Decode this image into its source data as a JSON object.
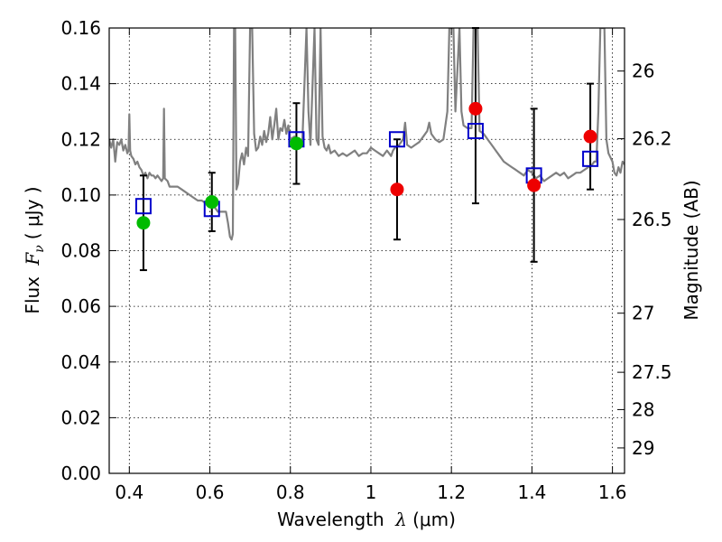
{
  "chart_data": {
    "type": "scatter",
    "xlabel_prefix": "Wavelength",
    "xlabel_symbol": "λ",
    "xlabel_unit": "(μm)",
    "ylabel_prefix": "Flux",
    "ylabel_symbol": "F",
    "ylabel_subscript": "ν",
    "ylabel_unit": "( μJy )",
    "y2label": "Magnitude (AB)",
    "xlim": [
      0.35,
      1.63
    ],
    "ylim": [
      0.0,
      0.16
    ],
    "grid": true,
    "x_ticks": [
      0.4,
      0.6,
      0.8,
      1.0,
      1.2,
      1.4,
      1.6
    ],
    "x_tick_labels": [
      "0.4",
      "0.6",
      "0.8",
      "1",
      "1.2",
      "1.4",
      "1.6"
    ],
    "y_ticks": [
      0.0,
      0.02,
      0.04,
      0.06,
      0.08,
      0.1,
      0.12,
      0.14,
      0.16
    ],
    "y_tick_labels": [
      "0.00",
      "0.02",
      "0.04",
      "0.06",
      "0.08",
      "0.10",
      "0.12",
      "0.14",
      "0.16"
    ],
    "magnitude_ticks": [
      {
        "mag": 26,
        "label": "26"
      },
      {
        "mag": 26.2,
        "label": "26.2"
      },
      {
        "mag": 26.5,
        "label": "26.5"
      },
      {
        "mag": 27,
        "label": "27"
      },
      {
        "mag": 27.5,
        "label": "27.5"
      },
      {
        "mag": 28,
        "label": "28"
      },
      {
        "mag": 29,
        "label": "29"
      }
    ],
    "series": [
      {
        "name": "model_spectrum",
        "kind": "line",
        "color": "#808080",
        "points": [
          [
            0.35,
            0.12
          ],
          [
            0.355,
            0.117
          ],
          [
            0.36,
            0.12
          ],
          [
            0.365,
            0.112
          ],
          [
            0.37,
            0.119
          ],
          [
            0.375,
            0.118
          ],
          [
            0.38,
            0.12
          ],
          [
            0.385,
            0.116
          ],
          [
            0.39,
            0.118
          ],
          [
            0.395,
            0.115
          ],
          [
            0.398,
            0.116
          ],
          [
            0.4,
            0.129
          ],
          [
            0.402,
            0.116
          ],
          [
            0.405,
            0.114
          ],
          [
            0.41,
            0.113
          ],
          [
            0.415,
            0.111
          ],
          [
            0.42,
            0.112
          ],
          [
            0.425,
            0.11
          ],
          [
            0.43,
            0.109
          ],
          [
            0.435,
            0.107
          ],
          [
            0.44,
            0.108
          ],
          [
            0.445,
            0.106
          ],
          [
            0.45,
            0.108
          ],
          [
            0.455,
            0.107
          ],
          [
            0.46,
            0.107
          ],
          [
            0.465,
            0.106
          ],
          [
            0.47,
            0.107
          ],
          [
            0.475,
            0.106
          ],
          [
            0.48,
            0.105
          ],
          [
            0.484,
            0.106
          ],
          [
            0.486,
            0.131
          ],
          [
            0.488,
            0.106
          ],
          [
            0.495,
            0.105
          ],
          [
            0.5,
            0.103
          ],
          [
            0.51,
            0.103
          ],
          [
            0.52,
            0.103
          ],
          [
            0.53,
            0.102
          ],
          [
            0.54,
            0.101
          ],
          [
            0.55,
            0.1
          ],
          [
            0.56,
            0.099
          ],
          [
            0.57,
            0.098
          ],
          [
            0.58,
            0.098
          ],
          [
            0.59,
            0.097
          ],
          [
            0.6,
            0.097
          ],
          [
            0.61,
            0.096
          ],
          [
            0.62,
            0.094
          ],
          [
            0.63,
            0.094
          ],
          [
            0.64,
            0.094
          ],
          [
            0.645,
            0.09
          ],
          [
            0.65,
            0.085
          ],
          [
            0.654,
            0.084
          ],
          [
            0.657,
            0.086
          ],
          [
            0.66,
            0.16
          ],
          [
            0.663,
            0.16
          ],
          [
            0.666,
            0.102
          ],
          [
            0.67,
            0.104
          ],
          [
            0.675,
            0.112
          ],
          [
            0.68,
            0.115
          ],
          [
            0.685,
            0.111
          ],
          [
            0.69,
            0.117
          ],
          [
            0.695,
            0.114
          ],
          [
            0.7,
            0.16
          ],
          [
            0.705,
            0.16
          ],
          [
            0.71,
            0.122
          ],
          [
            0.715,
            0.116
          ],
          [
            0.72,
            0.117
          ],
          [
            0.725,
            0.121
          ],
          [
            0.73,
            0.118
          ],
          [
            0.735,
            0.123
          ],
          [
            0.74,
            0.119
          ],
          [
            0.745,
            0.122
          ],
          [
            0.75,
            0.128
          ],
          [
            0.755,
            0.12
          ],
          [
            0.76,
            0.125
          ],
          [
            0.765,
            0.131
          ],
          [
            0.77,
            0.12
          ],
          [
            0.775,
            0.124
          ],
          [
            0.78,
            0.123
          ],
          [
            0.785,
            0.127
          ],
          [
            0.79,
            0.122
          ],
          [
            0.795,
            0.125
          ],
          [
            0.8,
            0.12
          ],
          [
            0.81,
            0.121
          ],
          [
            0.82,
            0.119
          ],
          [
            0.83,
            0.12
          ],
          [
            0.84,
            0.16
          ],
          [
            0.845,
            0.13
          ],
          [
            0.85,
            0.118
          ],
          [
            0.86,
            0.16
          ],
          [
            0.865,
            0.12
          ],
          [
            0.87,
            0.118
          ],
          [
            0.875,
            0.16
          ],
          [
            0.88,
            0.121
          ],
          [
            0.885,
            0.117
          ],
          [
            0.89,
            0.116
          ],
          [
            0.895,
            0.118
          ],
          [
            0.9,
            0.115
          ],
          [
            0.91,
            0.116
          ],
          [
            0.92,
            0.114
          ],
          [
            0.93,
            0.115
          ],
          [
            0.94,
            0.114
          ],
          [
            0.95,
            0.115
          ],
          [
            0.96,
            0.116
          ],
          [
            0.97,
            0.114
          ],
          [
            0.98,
            0.115
          ],
          [
            0.99,
            0.115
          ],
          [
            1.0,
            0.117
          ],
          [
            1.01,
            0.116
          ],
          [
            1.02,
            0.115
          ],
          [
            1.03,
            0.114
          ],
          [
            1.04,
            0.116
          ],
          [
            1.05,
            0.114
          ],
          [
            1.055,
            0.116
          ],
          [
            1.06,
            0.117
          ],
          [
            1.07,
            0.118
          ],
          [
            1.08,
            0.12
          ],
          [
            1.085,
            0.126
          ],
          [
            1.09,
            0.118
          ],
          [
            1.1,
            0.117
          ],
          [
            1.11,
            0.118
          ],
          [
            1.12,
            0.119
          ],
          [
            1.13,
            0.121
          ],
          [
            1.14,
            0.123
          ],
          [
            1.145,
            0.126
          ],
          [
            1.15,
            0.122
          ],
          [
            1.16,
            0.12
          ],
          [
            1.17,
            0.119
          ],
          [
            1.18,
            0.12
          ],
          [
            1.19,
            0.13
          ],
          [
            1.195,
            0.16
          ],
          [
            1.205,
            0.16
          ],
          [
            1.21,
            0.13
          ],
          [
            1.22,
            0.16
          ],
          [
            1.225,
            0.13
          ],
          [
            1.23,
            0.125
          ],
          [
            1.24,
            0.124
          ],
          [
            1.25,
            0.124
          ],
          [
            1.255,
            0.16
          ],
          [
            1.265,
            0.16
          ],
          [
            1.27,
            0.123
          ],
          [
            1.28,
            0.122
          ],
          [
            1.29,
            0.12
          ],
          [
            1.3,
            0.118
          ],
          [
            1.31,
            0.116
          ],
          [
            1.32,
            0.114
          ],
          [
            1.33,
            0.112
          ],
          [
            1.34,
            0.111
          ],
          [
            1.35,
            0.11
          ],
          [
            1.36,
            0.109
          ],
          [
            1.37,
            0.108
          ],
          [
            1.38,
            0.107
          ],
          [
            1.39,
            0.109
          ],
          [
            1.4,
            0.108
          ],
          [
            1.41,
            0.106
          ],
          [
            1.42,
            0.107
          ],
          [
            1.43,
            0.105
          ],
          [
            1.44,
            0.106
          ],
          [
            1.45,
            0.107
          ],
          [
            1.46,
            0.108
          ],
          [
            1.47,
            0.107
          ],
          [
            1.48,
            0.108
          ],
          [
            1.49,
            0.106
          ],
          [
            1.5,
            0.107
          ],
          [
            1.51,
            0.108
          ],
          [
            1.52,
            0.108
          ],
          [
            1.53,
            0.109
          ],
          [
            1.54,
            0.11
          ],
          [
            1.55,
            0.111
          ],
          [
            1.555,
            0.112
          ],
          [
            1.56,
            0.112
          ],
          [
            1.565,
            0.13
          ],
          [
            1.57,
            0.16
          ],
          [
            1.58,
            0.16
          ],
          [
            1.585,
            0.12
          ],
          [
            1.59,
            0.115
          ],
          [
            1.6,
            0.112
          ],
          [
            1.605,
            0.108
          ],
          [
            1.61,
            0.107
          ],
          [
            1.615,
            0.11
          ],
          [
            1.62,
            0.108
          ],
          [
            1.625,
            0.112
          ],
          [
            1.63,
            0.111
          ]
        ]
      },
      {
        "name": "model_photometry",
        "kind": "open_square",
        "color": "#0000cc",
        "points": [
          [
            0.435,
            0.096
          ],
          [
            0.605,
            0.095
          ],
          [
            0.815,
            0.12
          ],
          [
            1.065,
            0.12
          ],
          [
            1.26,
            0.123
          ],
          [
            1.405,
            0.107
          ],
          [
            1.545,
            0.113
          ]
        ]
      },
      {
        "name": "observed_green",
        "kind": "filled_circle",
        "color": "#00bb00",
        "points": [
          [
            0.435,
            0.09,
            0.073,
            0.107
          ],
          [
            0.605,
            0.0975,
            0.087,
            0.108
          ],
          [
            0.815,
            0.1185,
            0.104,
            0.133
          ]
        ]
      },
      {
        "name": "observed_red",
        "kind": "filled_circle",
        "color": "#ee0000",
        "points": [
          [
            1.065,
            0.102,
            0.084,
            0.12
          ],
          [
            1.26,
            0.131,
            0.097,
            0.16
          ],
          [
            1.405,
            0.1035,
            0.076,
            0.131
          ],
          [
            1.545,
            0.121,
            0.102,
            0.14
          ]
        ]
      }
    ]
  }
}
